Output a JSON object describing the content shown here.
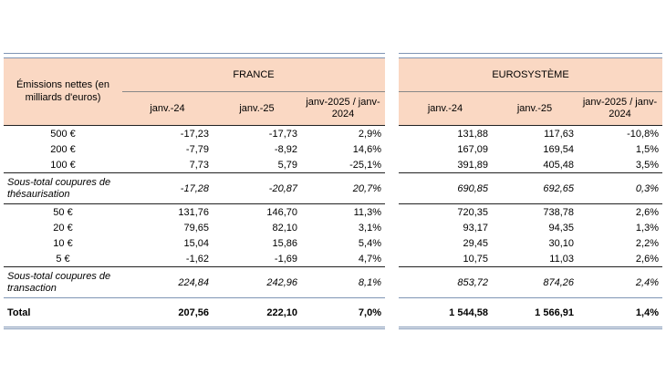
{
  "table": {
    "row_header": "Émissions nettes (en milliards d'euros)",
    "groups": [
      {
        "name": "FRANCE",
        "columns": [
          "janv.-24",
          "janv.-25",
          "janv-2025 / janv-2024"
        ]
      },
      {
        "name": "EUROSYSTÈME",
        "columns": [
          "janv.-24",
          "janv.-25",
          "janv-2025 / janv-2024"
        ]
      }
    ],
    "rows": [
      {
        "label": "500 €",
        "france": [
          "-17,23",
          "-17,73",
          "2,9%"
        ],
        "euro": [
          "131,88",
          "117,63",
          "-10,8%"
        ]
      },
      {
        "label": "200 €",
        "france": [
          "-7,79",
          "-8,92",
          "14,6%"
        ],
        "euro": [
          "167,09",
          "169,54",
          "1,5%"
        ]
      },
      {
        "label": "100 €",
        "france": [
          "7,73",
          "5,79",
          "-25,1%"
        ],
        "euro": [
          "391,89",
          "405,48",
          "3,5%"
        ]
      },
      {
        "label": "Sous-total coupures de thésaurisation",
        "france": [
          "-17,28",
          "-20,87",
          "20,7%"
        ],
        "euro": [
          "690,85",
          "692,65",
          "0,3%"
        ]
      },
      {
        "label": "50 €",
        "france": [
          "131,76",
          "146,70",
          "11,3%"
        ],
        "euro": [
          "720,35",
          "738,78",
          "2,6%"
        ]
      },
      {
        "label": "20 €",
        "france": [
          "79,65",
          "82,10",
          "3,1%"
        ],
        "euro": [
          "93,17",
          "94,35",
          "1,3%"
        ]
      },
      {
        "label": "10 €",
        "france": [
          "15,04",
          "15,86",
          "5,4%"
        ],
        "euro": [
          "29,45",
          "30,10",
          "2,2%"
        ]
      },
      {
        "label": "5 €",
        "france": [
          "-1,62",
          "-1,69",
          "4,7%"
        ],
        "euro": [
          "10,75",
          "11,03",
          "2,6%"
        ]
      },
      {
        "label": "Sous-total coupures de transaction",
        "france": [
          "224,84",
          "242,96",
          "8,1%"
        ],
        "euro": [
          "853,72",
          "874,26",
          "2,4%"
        ]
      },
      {
        "label": "Total",
        "france": [
          "207,56",
          "222,10",
          "7,0%"
        ],
        "euro": [
          "1 544,58",
          "1 566,91",
          "1,4%"
        ]
      }
    ]
  }
}
